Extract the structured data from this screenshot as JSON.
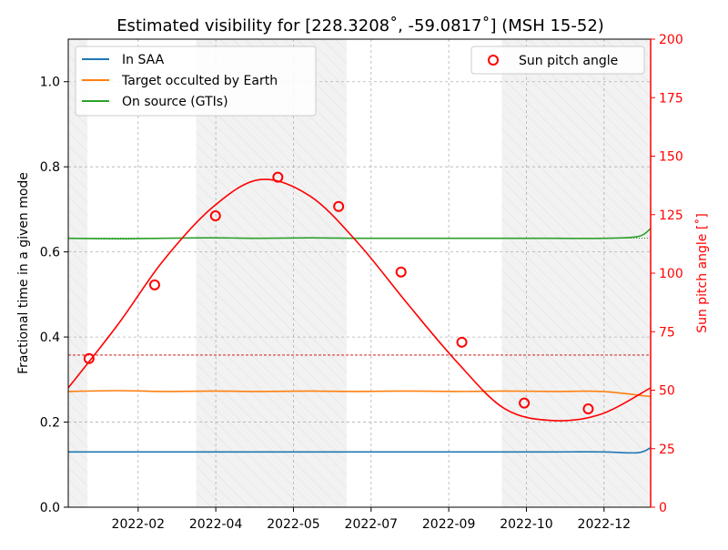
{
  "chart_data": {
    "type": "line",
    "title": "Estimated visibility for [228.3208˚, -59.0817˚] (MSH 15-52)",
    "ylabel_left": "Fractional time in a given mode",
    "ylabel_right": "Sun pitch angle [˚]",
    "xlim": [
      "2022-01-01",
      "2022-12-31"
    ],
    "ylim_left": [
      0,
      1.1
    ],
    "ylim_right": [
      0,
      200
    ],
    "x_ticks": [
      "2022-02",
      "2022-04",
      "2022-05",
      "2022-07",
      "2022-09",
      "2022-10",
      "2022-12"
    ],
    "y_ticks_left": [
      "0.0",
      "0.2",
      "0.4",
      "0.6",
      "0.8",
      "1.0"
    ],
    "y_ticks_right": [
      "0",
      "25",
      "50",
      "75",
      "100",
      "125",
      "150",
      "175",
      "200"
    ],
    "grid": true,
    "legend_left": {
      "placement": "top-left",
      "entries": [
        "In SAA",
        "Target occulted by Earth",
        "On source (GTIs)"
      ]
    },
    "legend_right": {
      "placement": "top-right",
      "entries": [
        "Sun pitch angle"
      ]
    },
    "shaded_regions": [
      [
        "2022-01-01",
        "2022-01-13"
      ],
      [
        "2022-03-22",
        "2022-06-24"
      ],
      [
        "2022-09-29",
        "2022-12-31"
      ]
    ],
    "reference_lines_right": [
      {
        "value": 115,
        "color": "#008000",
        "style": "dotted"
      },
      {
        "value": 65,
        "color": "#cc0000",
        "style": "dashed"
      }
    ],
    "series": [
      {
        "name": "In SAA",
        "axis": "left",
        "color": "#1f77b4",
        "x": [
          "2022-01-01",
          "2022-02-01",
          "2022-03-01",
          "2022-04-01",
          "2022-05-01",
          "2022-06-01",
          "2022-07-01",
          "2022-08-01",
          "2022-09-01",
          "2022-10-01",
          "2022-11-01",
          "2022-12-01",
          "2022-12-23",
          "2022-12-31"
        ],
        "values": [
          0.13,
          0.13,
          0.13,
          0.13,
          0.13,
          0.13,
          0.13,
          0.13,
          0.13,
          0.13,
          0.13,
          0.13,
          0.128,
          0.14
        ]
      },
      {
        "name": "Target occulted by Earth",
        "axis": "left",
        "color": "#ff7f0e",
        "x": [
          "2022-01-01",
          "2022-02-01",
          "2022-03-01",
          "2022-04-01",
          "2022-05-01",
          "2022-06-01",
          "2022-07-01",
          "2022-08-01",
          "2022-09-01",
          "2022-10-01",
          "2022-11-01",
          "2022-12-01",
          "2022-12-31"
        ],
        "values": [
          0.272,
          0.274,
          0.272,
          0.273,
          0.272,
          0.273,
          0.272,
          0.273,
          0.272,
          0.273,
          0.272,
          0.272,
          0.26
        ]
      },
      {
        "name": "On source (GTIs)",
        "axis": "left",
        "color": "#2ca02c",
        "x": [
          "2022-01-01",
          "2022-02-01",
          "2022-03-01",
          "2022-04-01",
          "2022-05-01",
          "2022-06-01",
          "2022-07-01",
          "2022-08-01",
          "2022-09-01",
          "2022-10-01",
          "2022-11-01",
          "2022-12-01",
          "2022-12-23",
          "2022-12-31"
        ],
        "values": [
          0.632,
          0.631,
          0.632,
          0.633,
          0.632,
          0.633,
          0.632,
          0.632,
          0.632,
          0.632,
          0.632,
          0.632,
          0.636,
          0.655
        ]
      },
      {
        "name": "Sun pitch angle",
        "axis": "right",
        "color": "#ff0000",
        "x": [
          "2022-01-01",
          "2022-02-01",
          "2022-03-01",
          "2022-04-01",
          "2022-05-01",
          "2022-06-01",
          "2022-07-01",
          "2022-08-01",
          "2022-09-01",
          "2022-10-01",
          "2022-11-01",
          "2022-12-01",
          "2022-12-31"
        ],
        "values": [
          51,
          78,
          105,
          128,
          140,
          133,
          113,
          87,
          62,
          42,
          37,
          40,
          51
        ]
      }
    ],
    "markers": {
      "name": "Sun pitch angle",
      "axis": "right",
      "color": "#ff0000",
      "x": [
        "2022-01-14",
        "2022-02-24",
        "2022-04-03",
        "2022-05-12",
        "2022-06-19",
        "2022-07-28",
        "2022-09-04",
        "2022-10-13",
        "2022-11-22"
      ],
      "values": [
        63.5,
        95,
        124.5,
        141,
        128.5,
        100.5,
        70.5,
        44.5,
        42
      ]
    }
  }
}
